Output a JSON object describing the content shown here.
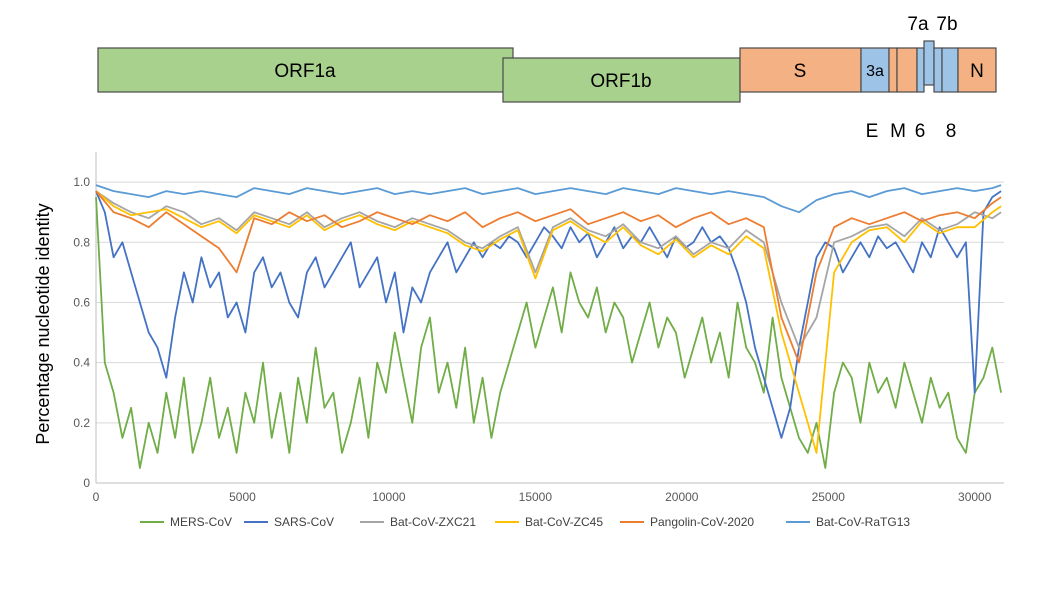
{
  "genome_map": {
    "genes": [
      {
        "label": "ORF1a",
        "color": "#a9d18e"
      },
      {
        "label": "ORF1b",
        "color": "#a9d18e"
      },
      {
        "label": "S",
        "color": "#f4b183"
      },
      {
        "label": "3a",
        "color": "#9dc3e6"
      },
      {
        "label": "",
        "color": "#f4b183"
      },
      {
        "label": "",
        "color": "#f4b183"
      },
      {
        "label": "",
        "color": "#9dc3e6"
      },
      {
        "label": "",
        "color": "#9dc3e6"
      },
      {
        "label": "",
        "color": "#9dc3e6"
      },
      {
        "label": "",
        "color": "#9dc3e6"
      },
      {
        "label": "N",
        "color": "#f4b183"
      }
    ],
    "labels_above": [
      "7a",
      "7b"
    ],
    "labels_below": [
      "E",
      "M",
      "6",
      "8"
    ]
  },
  "chart_data": {
    "type": "line",
    "title": "",
    "xlabel": "",
    "ylabel": "Percentage nucleotide identity",
    "xlim": [
      0,
      31000
    ],
    "ylim": [
      0,
      1.1
    ],
    "x_ticks": [
      "0",
      "5000",
      "10000",
      "15000",
      "20000",
      "25000",
      "30000"
    ],
    "y_ticks": [
      "0",
      "0.2",
      "0.4",
      "0.6",
      "0.8",
      "1.0"
    ],
    "grid": "horizontal",
    "legend_position": "bottom",
    "series": [
      {
        "name": "MERS-CoV",
        "color": "#70ad47",
        "x": [
          0,
          300,
          600,
          900,
          1200,
          1500,
          1800,
          2100,
          2400,
          2700,
          3000,
          3300,
          3600,
          3900,
          4200,
          4500,
          4800,
          5100,
          5400,
          5700,
          6000,
          6300,
          6600,
          6900,
          7200,
          7500,
          7800,
          8100,
          8400,
          8700,
          9000,
          9300,
          9600,
          9900,
          10200,
          10500,
          10800,
          11100,
          11400,
          11700,
          12000,
          12300,
          12600,
          12900,
          13200,
          13500,
          13800,
          14100,
          14400,
          14700,
          15000,
          15300,
          15600,
          15900,
          16200,
          16500,
          16800,
          17100,
          17400,
          17700,
          18000,
          18300,
          18600,
          18900,
          19200,
          19500,
          19800,
          20100,
          20400,
          20700,
          21000,
          21300,
          21600,
          21900,
          22200,
          22500,
          22800,
          23100,
          23400,
          23700,
          24000,
          24300,
          24600,
          24900,
          25200,
          25500,
          25800,
          26100,
          26400,
          26700,
          27000,
          27300,
          27600,
          27900,
          28200,
          28500,
          28800,
          29100,
          29400,
          29700,
          30000,
          30300,
          30600,
          30900
        ],
        "values": [
          0.95,
          0.4,
          0.3,
          0.15,
          0.25,
          0.05,
          0.2,
          0.1,
          0.3,
          0.15,
          0.35,
          0.1,
          0.2,
          0.35,
          0.15,
          0.25,
          0.1,
          0.3,
          0.2,
          0.4,
          0.15,
          0.3,
          0.1,
          0.35,
          0.2,
          0.45,
          0.25,
          0.3,
          0.1,
          0.2,
          0.35,
          0.15,
          0.4,
          0.3,
          0.5,
          0.35,
          0.2,
          0.45,
          0.55,
          0.3,
          0.4,
          0.25,
          0.45,
          0.2,
          0.35,
          0.15,
          0.3,
          0.4,
          0.5,
          0.6,
          0.45,
          0.55,
          0.65,
          0.5,
          0.7,
          0.6,
          0.55,
          0.65,
          0.5,
          0.6,
          0.55,
          0.4,
          0.5,
          0.6,
          0.45,
          0.55,
          0.5,
          0.35,
          0.45,
          0.55,
          0.4,
          0.5,
          0.35,
          0.6,
          0.45,
          0.4,
          0.3,
          0.55,
          0.35,
          0.25,
          0.15,
          0.1,
          0.2,
          0.05,
          0.3,
          0.4,
          0.35,
          0.2,
          0.4,
          0.3,
          0.35,
          0.25,
          0.4,
          0.3,
          0.2,
          0.35,
          0.25,
          0.3,
          0.15,
          0.1,
          0.3,
          0.35,
          0.45,
          0.3
        ]
      },
      {
        "name": "SARS-CoV",
        "color": "#4472c4",
        "x": [
          0,
          300,
          600,
          900,
          1200,
          1500,
          1800,
          2100,
          2400,
          2700,
          3000,
          3300,
          3600,
          3900,
          4200,
          4500,
          4800,
          5100,
          5400,
          5700,
          6000,
          6300,
          6600,
          6900,
          7200,
          7500,
          7800,
          8100,
          8400,
          8700,
          9000,
          9300,
          9600,
          9900,
          10200,
          10500,
          10800,
          11100,
          11400,
          11700,
          12000,
          12300,
          12600,
          12900,
          13200,
          13500,
          13800,
          14100,
          14400,
          14700,
          15000,
          15300,
          15600,
          15900,
          16200,
          16500,
          16800,
          17100,
          17400,
          17700,
          18000,
          18300,
          18600,
          18900,
          19200,
          19500,
          19800,
          20100,
          20400,
          20700,
          21000,
          21300,
          21600,
          21900,
          22200,
          22500,
          22800,
          23100,
          23400,
          23700,
          24000,
          24300,
          24600,
          24900,
          25200,
          25500,
          25800,
          26100,
          26400,
          26700,
          27000,
          27300,
          27600,
          27900,
          28200,
          28500,
          28800,
          29100,
          29400,
          29700,
          30000,
          30300,
          30600,
          30900
        ],
        "values": [
          0.97,
          0.9,
          0.75,
          0.8,
          0.7,
          0.6,
          0.5,
          0.45,
          0.35,
          0.55,
          0.7,
          0.6,
          0.75,
          0.65,
          0.7,
          0.55,
          0.6,
          0.5,
          0.7,
          0.75,
          0.65,
          0.7,
          0.6,
          0.55,
          0.7,
          0.75,
          0.65,
          0.7,
          0.75,
          0.8,
          0.65,
          0.7,
          0.75,
          0.6,
          0.7,
          0.5,
          0.65,
          0.6,
          0.7,
          0.75,
          0.8,
          0.7,
          0.75,
          0.8,
          0.75,
          0.8,
          0.78,
          0.82,
          0.8,
          0.75,
          0.8,
          0.85,
          0.82,
          0.78,
          0.85,
          0.8,
          0.83,
          0.75,
          0.8,
          0.85,
          0.78,
          0.82,
          0.8,
          0.85,
          0.8,
          0.75,
          0.82,
          0.78,
          0.8,
          0.85,
          0.8,
          0.82,
          0.78,
          0.7,
          0.6,
          0.45,
          0.35,
          0.25,
          0.15,
          0.25,
          0.45,
          0.6,
          0.75,
          0.8,
          0.78,
          0.7,
          0.75,
          0.8,
          0.75,
          0.82,
          0.78,
          0.8,
          0.75,
          0.7,
          0.8,
          0.75,
          0.85,
          0.8,
          0.75,
          0.8,
          0.3,
          0.9,
          0.95,
          0.97
        ]
      },
      {
        "name": "Bat-CoV-ZXC21",
        "color": "#a5a5a5",
        "x": [
          0,
          600,
          1200,
          1800,
          2400,
          3000,
          3600,
          4200,
          4800,
          5400,
          6000,
          6600,
          7200,
          7800,
          8400,
          9000,
          9600,
          10200,
          10800,
          11400,
          12000,
          12600,
          13200,
          13800,
          14400,
          15000,
          15600,
          16200,
          16800,
          17400,
          18000,
          18600,
          19200,
          19800,
          20400,
          21000,
          21600,
          22200,
          22800,
          23400,
          24000,
          24600,
          25200,
          25800,
          26400,
          27000,
          27600,
          28200,
          28800,
          29400,
          30000,
          30600,
          30900
        ],
        "values": [
          0.97,
          0.93,
          0.9,
          0.88,
          0.92,
          0.9,
          0.86,
          0.88,
          0.84,
          0.9,
          0.88,
          0.86,
          0.9,
          0.85,
          0.88,
          0.9,
          0.87,
          0.85,
          0.88,
          0.86,
          0.84,
          0.8,
          0.78,
          0.82,
          0.85,
          0.7,
          0.85,
          0.88,
          0.84,
          0.82,
          0.86,
          0.8,
          0.78,
          0.82,
          0.76,
          0.8,
          0.78,
          0.84,
          0.8,
          0.6,
          0.45,
          0.55,
          0.8,
          0.82,
          0.85,
          0.86,
          0.82,
          0.88,
          0.84,
          0.86,
          0.9,
          0.88,
          0.9
        ]
      },
      {
        "name": "Bat-CoV-ZC45",
        "color": "#ffc000",
        "x": [
          0,
          600,
          1200,
          1800,
          2400,
          3000,
          3600,
          4200,
          4800,
          5400,
          6000,
          6600,
          7200,
          7800,
          8400,
          9000,
          9600,
          10200,
          10800,
          11400,
          12000,
          12600,
          13200,
          13800,
          14400,
          15000,
          15600,
          16200,
          16800,
          17400,
          18000,
          18600,
          19200,
          19800,
          20400,
          21000,
          21600,
          22200,
          22800,
          23400,
          24000,
          24600,
          25200,
          25800,
          26400,
          27000,
          27600,
          28200,
          28800,
          29400,
          30000,
          30600,
          30900
        ],
        "values": [
          0.97,
          0.92,
          0.89,
          0.9,
          0.91,
          0.88,
          0.85,
          0.87,
          0.83,
          0.89,
          0.87,
          0.85,
          0.89,
          0.84,
          0.87,
          0.89,
          0.86,
          0.84,
          0.87,
          0.85,
          0.83,
          0.79,
          0.77,
          0.81,
          0.84,
          0.68,
          0.84,
          0.87,
          0.83,
          0.8,
          0.85,
          0.79,
          0.76,
          0.81,
          0.75,
          0.79,
          0.76,
          0.82,
          0.78,
          0.5,
          0.3,
          0.1,
          0.7,
          0.8,
          0.84,
          0.85,
          0.8,
          0.87,
          0.83,
          0.85,
          0.85,
          0.9,
          0.92
        ]
      },
      {
        "name": "Pangolin-CoV-2020",
        "color": "#ed7d31",
        "x": [
          0,
          600,
          1200,
          1800,
          2400,
          3000,
          3600,
          4200,
          4800,
          5400,
          6000,
          6600,
          7200,
          7800,
          8400,
          9000,
          9600,
          10200,
          10800,
          11400,
          12000,
          12600,
          13200,
          13800,
          14400,
          15000,
          15600,
          16200,
          16800,
          17400,
          18000,
          18600,
          19200,
          19800,
          20400,
          21000,
          21600,
          22200,
          22800,
          23400,
          24000,
          24600,
          25200,
          25800,
          26400,
          27000,
          27600,
          28200,
          28800,
          29400,
          30000,
          30600,
          30900
        ],
        "values": [
          0.97,
          0.9,
          0.88,
          0.85,
          0.9,
          0.86,
          0.82,
          0.78,
          0.7,
          0.88,
          0.86,
          0.9,
          0.87,
          0.89,
          0.85,
          0.87,
          0.9,
          0.88,
          0.86,
          0.89,
          0.87,
          0.9,
          0.85,
          0.88,
          0.9,
          0.87,
          0.89,
          0.91,
          0.86,
          0.88,
          0.9,
          0.87,
          0.89,
          0.85,
          0.88,
          0.9,
          0.86,
          0.88,
          0.85,
          0.55,
          0.4,
          0.7,
          0.85,
          0.88,
          0.86,
          0.88,
          0.9,
          0.87,
          0.89,
          0.9,
          0.88,
          0.93,
          0.95
        ]
      },
      {
        "name": "Bat-CoV-RaTG13",
        "color": "#5b9bd5",
        "x": [
          0,
          600,
          1200,
          1800,
          2400,
          3000,
          3600,
          4200,
          4800,
          5400,
          6000,
          6600,
          7200,
          7800,
          8400,
          9000,
          9600,
          10200,
          10800,
          11400,
          12000,
          12600,
          13200,
          13800,
          14400,
          15000,
          15600,
          16200,
          16800,
          17400,
          18000,
          18600,
          19200,
          19800,
          20400,
          21000,
          21600,
          22200,
          22800,
          23400,
          24000,
          24600,
          25200,
          25800,
          26400,
          27000,
          27600,
          28200,
          28800,
          29400,
          30000,
          30600,
          30900
        ],
        "values": [
          0.99,
          0.97,
          0.96,
          0.95,
          0.97,
          0.96,
          0.97,
          0.96,
          0.95,
          0.98,
          0.97,
          0.96,
          0.98,
          0.97,
          0.96,
          0.97,
          0.98,
          0.96,
          0.97,
          0.96,
          0.97,
          0.98,
          0.96,
          0.97,
          0.98,
          0.96,
          0.97,
          0.98,
          0.97,
          0.96,
          0.98,
          0.97,
          0.96,
          0.98,
          0.97,
          0.96,
          0.97,
          0.96,
          0.95,
          0.92,
          0.9,
          0.94,
          0.96,
          0.97,
          0.95,
          0.97,
          0.98,
          0.96,
          0.97,
          0.98,
          0.97,
          0.98,
          0.99
        ]
      }
    ]
  }
}
